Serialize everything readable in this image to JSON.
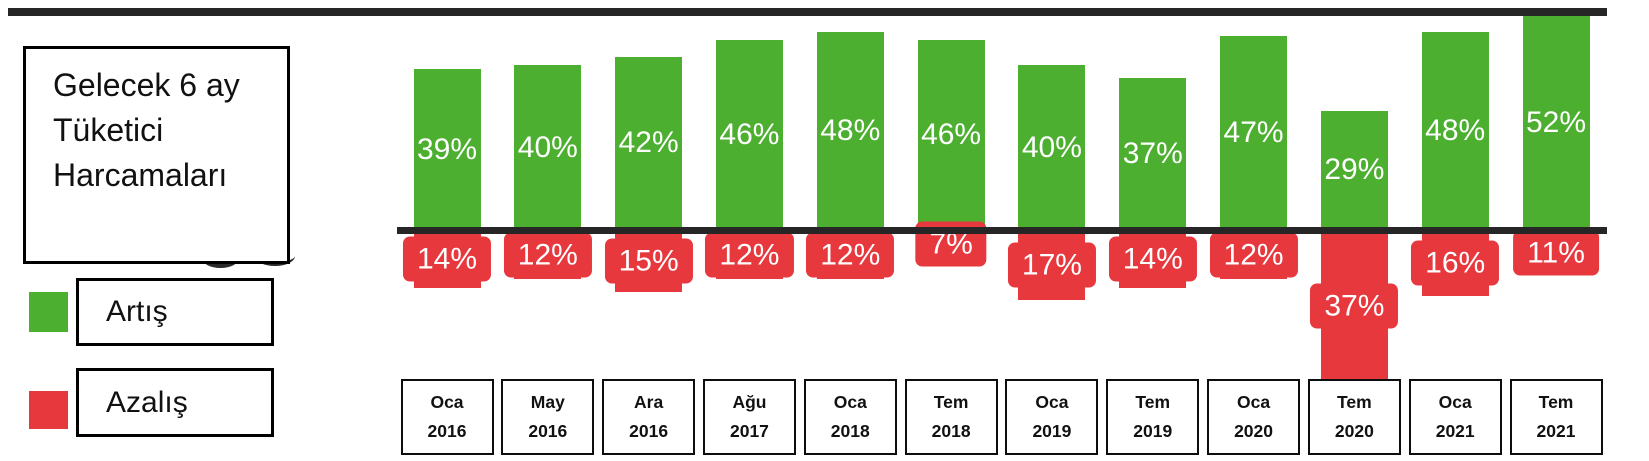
{
  "title": {
    "lines": [
      "Gelecek 6 ay",
      "Tüketici",
      "Harcamaları"
    ],
    "full": "Gelecek 6 ay Tüketici Harcamaları"
  },
  "legend": {
    "items": [
      {
        "label": "Artış",
        "color": "#4CAF30"
      },
      {
        "label": "Azalış",
        "color": "#E7383E"
      }
    ]
  },
  "chart_data": {
    "type": "bar",
    "subtype": "diverging",
    "title": "Gelecek 6 ay Tüketici Harcamaları",
    "value_format": "percent",
    "baseline": 0,
    "grid": false,
    "legend_position": "left",
    "categories": [
      {
        "month": "Oca",
        "year": "2016"
      },
      {
        "month": "May",
        "year": "2016"
      },
      {
        "month": "Ara",
        "year": "2016"
      },
      {
        "month": "Ağu",
        "year": "2017"
      },
      {
        "month": "Oca",
        "year": "2018"
      },
      {
        "month": "Tem",
        "year": "2018"
      },
      {
        "month": "Oca",
        "year": "2019"
      },
      {
        "month": "Tem",
        "year": "2019"
      },
      {
        "month": "Oca",
        "year": "2020"
      },
      {
        "month": "Tem",
        "year": "2020"
      },
      {
        "month": "Oca",
        "year": "2021"
      },
      {
        "month": "Tem",
        "year": "2021"
      }
    ],
    "series": [
      {
        "name": "Artış",
        "direction": "up",
        "color": "#4CAF30",
        "values": [
          39,
          40,
          42,
          46,
          48,
          46,
          40,
          37,
          47,
          29,
          48,
          52
        ]
      },
      {
        "name": "Azalış",
        "direction": "down",
        "color": "#E7383E",
        "values": [
          14,
          12,
          15,
          12,
          12,
          7,
          17,
          14,
          12,
          37,
          16,
          11
        ]
      }
    ]
  },
  "colors": {
    "increase": "#4CAF30",
    "decrease": "#E7383E",
    "axis_black": "#262626",
    "bar_label_text": "#FFFFFF"
  }
}
